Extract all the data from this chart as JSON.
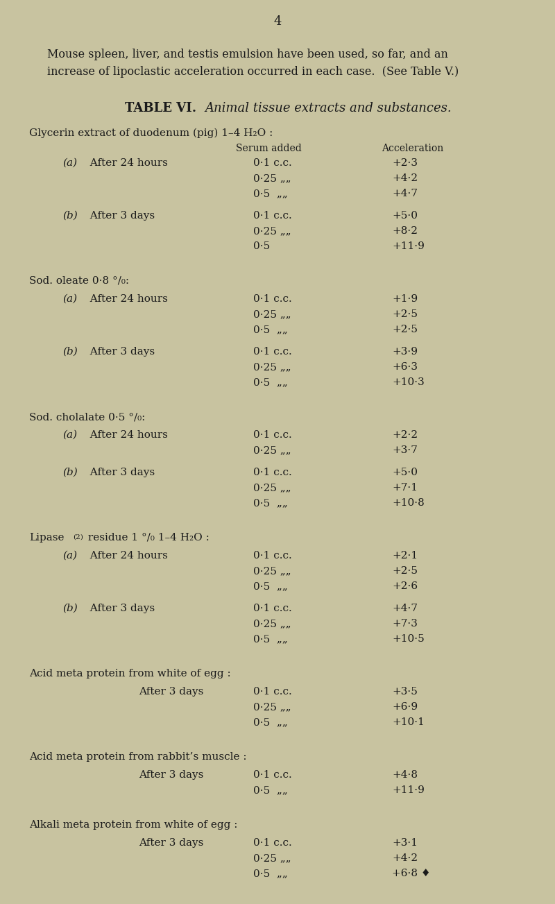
{
  "page_number": "4",
  "bg_color": "#c8c3a0",
  "text_color": "#1a1a1a",
  "intro_lines": [
    "Mouse spleen, liver, and testis emulsion have been used, so far, and an",
    "increase of lipoclastic acceleration occurred in each case.  (See Table V.)"
  ],
  "table_title_plain": "TABLE VI.",
  "table_title_italic": "Animal tissue extracts and substances.",
  "col_header_serum": "Serum added",
  "col_header_accel": "Acceleration",
  "sections": [
    {
      "header": "Glycerin extract of duodenum (pig) 1–4 H₂O :",
      "header_type": "normal",
      "has_col_headers": true,
      "subsections": [
        {
          "label_italic": "(a)",
          "label_rest": "  After 24 hours",
          "rows": [
            [
              "0·1 c.c.",
              "+2·3"
            ],
            [
              "0·25 „„",
              "+4·2"
            ],
            [
              "0·5  „„",
              "+4·7"
            ]
          ]
        },
        {
          "label_italic": "(b)",
          "label_rest": "  After 3 days",
          "rows": [
            [
              "0·1 c.c.",
              "+5·0"
            ],
            [
              "0·25 „„",
              "+8·2"
            ],
            [
              "0·5",
              "+11·9"
            ]
          ]
        }
      ]
    },
    {
      "header": "Sod. oleate 0·8 °/₀:",
      "header_type": "normal",
      "has_col_headers": false,
      "subsections": [
        {
          "label_italic": "(a)",
          "label_rest": "  After 24 hours",
          "rows": [
            [
              "0·1 c.c.",
              "+1·9"
            ],
            [
              "0·25 „„",
              "+2·5"
            ],
            [
              "0·5  „„",
              "+2·5"
            ]
          ]
        },
        {
          "label_italic": "(b)",
          "label_rest": "  After 3 days",
          "rows": [
            [
              "0·1 c.c.",
              "+3·9"
            ],
            [
              "0·25 „„",
              "+6·3"
            ],
            [
              "0·5  „„",
              "+10·3"
            ]
          ]
        }
      ]
    },
    {
      "header": "Sod. cholalate 0·5 °/₀:",
      "header_type": "normal",
      "has_col_headers": false,
      "subsections": [
        {
          "label_italic": "(a)",
          "label_rest": "  After 24 hours",
          "rows": [
            [
              "0·1 c.c.",
              "+2·2"
            ],
            [
              "0·25 „„",
              "+3·7"
            ]
          ]
        },
        {
          "label_italic": "(b)",
          "label_rest": "  After 3 days",
          "rows": [
            [
              "0·1 c.c.",
              "+5·0"
            ],
            [
              "0·25 „„",
              "+7·1"
            ],
            [
              "0·5  „„",
              "+10·8"
            ]
          ]
        }
      ]
    },
    {
      "header": "Lipase residue 1 °/₀ 1–4 H₂O :",
      "header_type": "lipase",
      "has_col_headers": false,
      "subsections": [
        {
          "label_italic": "(a)",
          "label_rest": "  After 24 hours",
          "rows": [
            [
              "0·1 c.c.",
              "+2·1"
            ],
            [
              "0·25 „„",
              "+2·5"
            ],
            [
              "0·5  „„",
              "+2·6"
            ]
          ]
        },
        {
          "label_italic": "(b)",
          "label_rest": "  After 3 days",
          "rows": [
            [
              "0·1 c.c.",
              "+4·7"
            ],
            [
              "0·25 „„",
              "+7·3"
            ],
            [
              "0·5  „„",
              "+10·5"
            ]
          ]
        }
      ]
    },
    {
      "header": "Acid meta protein from white of egg :",
      "header_type": "normal",
      "has_col_headers": false,
      "subsections": [
        {
          "label_italic": "",
          "label_rest": "After 3 days",
          "centered_label": true,
          "rows": [
            [
              "0·1 c.c.",
              "+3·5"
            ],
            [
              "0·25 „„",
              "+6·9"
            ],
            [
              "0·5  „„",
              "+10·1"
            ]
          ]
        }
      ]
    },
    {
      "header": "Acid meta protein from rabbit’s muscle :",
      "header_type": "normal",
      "has_col_headers": false,
      "subsections": [
        {
          "label_italic": "",
          "label_rest": "After 3 days",
          "centered_label": true,
          "rows": [
            [
              "0·1 c.c.",
              "+4·8"
            ],
            [
              "0·5  „„",
              "+11·9"
            ]
          ]
        }
      ]
    },
    {
      "header": "Alkali meta protein from white of egg :",
      "header_type": "normal",
      "has_col_headers": false,
      "subsections": [
        {
          "label_italic": "",
          "label_rest": "After 3 days",
          "centered_label": true,
          "rows": [
            [
              "0·1 c.c.",
              "+3·1"
            ],
            [
              "0·25 „„",
              "+4·2"
            ],
            [
              "0·5  „„",
              "+6·8 ♦"
            ]
          ]
        }
      ]
    }
  ]
}
